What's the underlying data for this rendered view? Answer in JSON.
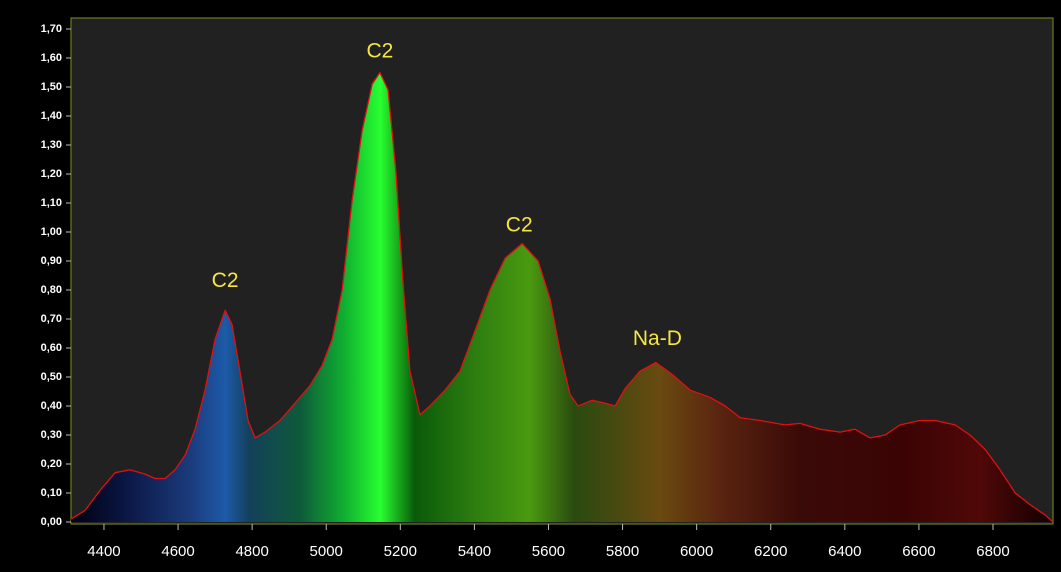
{
  "chart_data": {
    "type": "area",
    "color": "#e01010",
    "x": [
      4311,
      4349,
      4390,
      4430,
      4470,
      4511,
      4538,
      4565,
      4592,
      4619,
      4646,
      4673,
      4700,
      4727,
      4746,
      4767,
      4789,
      4808,
      4835,
      4875,
      4916,
      4956,
      4989,
      5016,
      5043,
      5070,
      5097,
      5124,
      5145,
      5167,
      5188,
      5207,
      5226,
      5253,
      5280,
      5321,
      5361,
      5402,
      5442,
      5483,
      5529,
      5572,
      5604,
      5631,
      5658,
      5680,
      5718,
      5753,
      5780,
      5807,
      5847,
      5890,
      5933,
      5982,
      6036,
      6077,
      6117,
      6171,
      6238,
      6279,
      6333,
      6387,
      6427,
      6468,
      6509,
      6549,
      6603,
      6644,
      6698,
      6738,
      6779,
      6819,
      6860,
      6900,
      6941,
      6962
    ],
    "values": [
      0.01,
      0.04,
      0.11,
      0.17,
      0.18,
      0.165,
      0.15,
      0.15,
      0.18,
      0.23,
      0.32,
      0.455,
      0.63,
      0.73,
      0.68,
      0.52,
      0.35,
      0.29,
      0.31,
      0.35,
      0.41,
      0.47,
      0.54,
      0.63,
      0.8,
      1.11,
      1.35,
      1.51,
      1.55,
      1.49,
      1.21,
      0.83,
      0.52,
      0.37,
      0.4,
      0.455,
      0.52,
      0.66,
      0.8,
      0.91,
      0.96,
      0.9,
      0.77,
      0.59,
      0.44,
      0.4,
      0.42,
      0.41,
      0.4,
      0.46,
      0.52,
      0.55,
      0.51,
      0.455,
      0.43,
      0.4,
      0.36,
      0.35,
      0.335,
      0.34,
      0.32,
      0.31,
      0.32,
      0.29,
      0.3,
      0.335,
      0.35,
      0.35,
      0.335,
      0.3,
      0.25,
      0.18,
      0.1,
      0.06,
      0.024,
      0.0
    ],
    "xlim": [
      4311,
      6962
    ],
    "ylim": [
      0,
      1.74
    ],
    "xticks": [
      4400,
      4600,
      4800,
      5000,
      5200,
      5400,
      5600,
      5800,
      6000,
      6200,
      6400,
      6600,
      6800
    ],
    "yticks": [
      {
        "value": 0,
        "label": "0,00"
      },
      {
        "value": 0.1,
        "label": "0,10"
      },
      {
        "value": 0.2,
        "label": "0,20"
      },
      {
        "value": 0.3,
        "label": "0,30"
      },
      {
        "value": 0.4,
        "label": "0,40"
      },
      {
        "value": 0.5,
        "label": "0,50"
      },
      {
        "value": 0.6,
        "label": "0,60"
      },
      {
        "value": 0.7,
        "label": "0,70"
      },
      {
        "value": 0.8,
        "label": "0,80"
      },
      {
        "value": 0.9,
        "label": "0,90"
      },
      {
        "value": 1.0,
        "label": "1,00"
      },
      {
        "value": 1.1,
        "label": "1,10"
      },
      {
        "value": 1.2,
        "label": "1,20"
      },
      {
        "value": 1.3,
        "label": "1,30"
      },
      {
        "value": 1.4,
        "label": "1,40"
      },
      {
        "value": 1.5,
        "label": "1,50"
      },
      {
        "value": 1.6,
        "label": "1,60"
      },
      {
        "value": 1.7,
        "label": "1,70"
      }
    ],
    "annotations": [
      {
        "text": "C2",
        "x": 4727,
        "y": 0.83
      },
      {
        "text": "C2",
        "x": 5145,
        "y": 1.62
      },
      {
        "text": "C2",
        "x": 5521,
        "y": 1.02
      },
      {
        "text": "Na-D",
        "x": 5894,
        "y": 0.63
      }
    ]
  }
}
